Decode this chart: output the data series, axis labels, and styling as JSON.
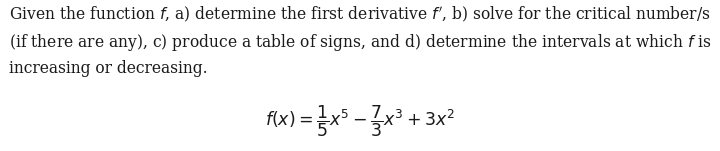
{
  "paragraph_lines": [
    "Given the function $f$, a) determine the first derivative $f'$, b) solve for the critical number/s",
    "(if there are any), c) produce a table of signs, and d) determine the intervals at which $f$ is",
    "increasing or decreasing."
  ],
  "formula": "$f(x) = \\dfrac{1}{5}x^5 - \\dfrac{7}{3}x^3 + 3x^2$",
  "text_color": "#1a1a1a",
  "background_color": "#ffffff",
  "paragraph_fontsize": 11.2,
  "formula_fontsize": 12.5,
  "fig_width": 7.2,
  "fig_height": 1.51,
  "dpi": 100
}
